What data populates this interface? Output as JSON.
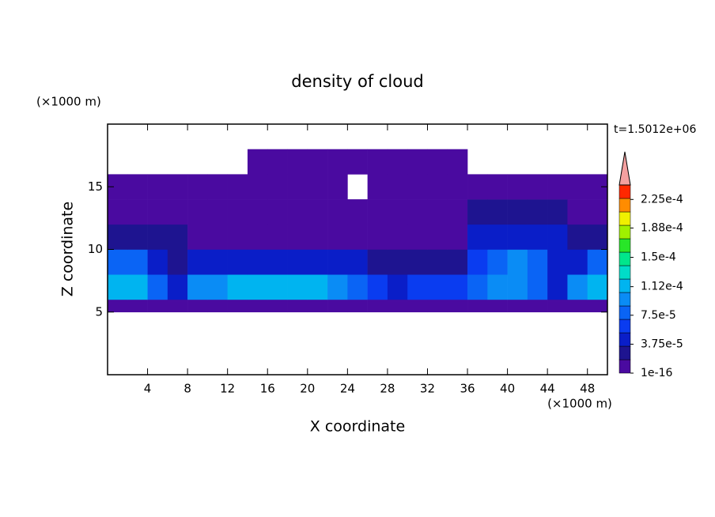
{
  "chart_data": {
    "type": "contour",
    "title": "density of cloud",
    "x_label": "X coordinate",
    "y_label": "Z coordinate",
    "x_unit": "(×1000 m)",
    "y_unit": "(×1000 m)",
    "annotation": "t=1.5012e+06",
    "xlim": [
      0,
      50
    ],
    "ylim": [
      0,
      20
    ],
    "xticks": [
      4,
      8,
      12,
      16,
      20,
      24,
      28,
      32,
      36,
      40,
      44,
      48
    ],
    "yticks": [
      5,
      10,
      15
    ],
    "x_edges": [
      0,
      2,
      4,
      6,
      8,
      10,
      12,
      14,
      16,
      18,
      20,
      22,
      24,
      26,
      28,
      30,
      32,
      34,
      36,
      38,
      40,
      42,
      44,
      46,
      48,
      50
    ],
    "z_edges": [
      5,
      6,
      8,
      10,
      12,
      14,
      16,
      18
    ],
    "field": [
      [
        1.5e-05,
        1.5e-05,
        1.5e-05,
        1.5e-05,
        1.5e-05,
        1.5e-05,
        1.5e-05,
        1.5e-05,
        1.5e-05,
        1.5e-05,
        1.5e-05,
        1.5e-05,
        1.5e-05,
        1.5e-05,
        1.5e-05,
        1.5e-05,
        1.5e-05,
        1.5e-05,
        1.5e-05,
        1.5e-05,
        1.5e-05,
        1.5e-05,
        1.5e-05,
        1.5e-05,
        1.5e-05
      ],
      [
        0.00012,
        0.00011,
        8e-05,
        4e-05,
        9e-05,
        0.0001,
        0.000105,
        0.000105,
        0.00011,
        0.00011,
        0.000105,
        0.0001,
        8e-05,
        6e-05,
        5e-05,
        6e-05,
        6e-05,
        6e-05,
        8e-05,
        9e-05,
        0.0001,
        7e-05,
        4e-05,
        9e-05,
        0.00011
      ],
      [
        7e-05,
        7e-05,
        5e-05,
        3e-05,
        5e-05,
        5e-05,
        5e-05,
        5e-05,
        5e-05,
        5e-05,
        5e-05,
        5e-05,
        4e-05,
        3e-05,
        3e-05,
        3e-05,
        3e-05,
        3e-05,
        6e-05,
        8e-05,
        9e-05,
        8e-05,
        4e-05,
        5e-05,
        7e-05
      ],
      [
        2e-05,
        2e-05,
        2e-05,
        2e-05,
        1.5e-05,
        1.5e-05,
        1.5e-05,
        1.5e-05,
        1.5e-05,
        1.5e-05,
        1.5e-05,
        1.5e-05,
        1.5e-05,
        1.5e-05,
        1.5e-05,
        1.5e-05,
        1.5e-05,
        1.5e-05,
        5e-05,
        5e-05,
        5e-05,
        5e-05,
        5e-05,
        2.5e-05,
        2.5e-05
      ],
      [
        1e-05,
        1e-05,
        1e-05,
        1e-05,
        1e-05,
        1e-05,
        1e-05,
        1e-05,
        1e-05,
        1e-05,
        1e-05,
        1e-05,
        1e-05,
        1e-05,
        1e-05,
        1e-05,
        1e-05,
        1e-05,
        2e-05,
        2e-05,
        2e-05,
        2e-05,
        2e-05,
        1e-05,
        1e-05
      ],
      [
        5e-06,
        5e-06,
        5e-06,
        5e-06,
        5e-06,
        5e-06,
        5e-06,
        5e-06,
        5e-06,
        5e-06,
        5e-06,
        5e-06,
        null,
        5e-06,
        5e-06,
        5e-06,
        5e-06,
        5e-06,
        5e-06,
        5e-06,
        5e-06,
        5e-06,
        5e-06,
        5e-06,
        5e-06
      ],
      [
        null,
        null,
        null,
        null,
        null,
        null,
        null,
        5e-06,
        5e-06,
        5e-06,
        5e-06,
        5e-06,
        5e-06,
        5e-06,
        5e-06,
        5e-06,
        5e-06,
        5e-06,
        null,
        null,
        null,
        null,
        null,
        null,
        null
      ]
    ],
    "colorbar": {
      "clim": [
        1e-16,
        0.00024375
      ],
      "ticks": [
        {
          "value": 1e-16,
          "label": "1e-16"
        },
        {
          "value": 3.75e-05,
          "label": "3.75e-5"
        },
        {
          "value": 7.5e-05,
          "label": "7.5e-5"
        },
        {
          "value": 0.000112,
          "label": "1.12e-4"
        },
        {
          "value": 0.00015,
          "label": "1.5e-4"
        },
        {
          "value": 0.000188,
          "label": "1.88e-4"
        },
        {
          "value": 0.000225,
          "label": "2.25e-4"
        }
      ],
      "colors": [
        "#4a0aa0",
        "#1e1490",
        "#0a1ec8",
        "#0a3cf0",
        "#0a64f5",
        "#0a8cf5",
        "#00b4f0",
        "#00dcc8",
        "#00e68c",
        "#28e628",
        "#a0f000",
        "#f0f000",
        "#ff8c00",
        "#ff2800"
      ],
      "over_color": "#f4a0a0"
    }
  }
}
